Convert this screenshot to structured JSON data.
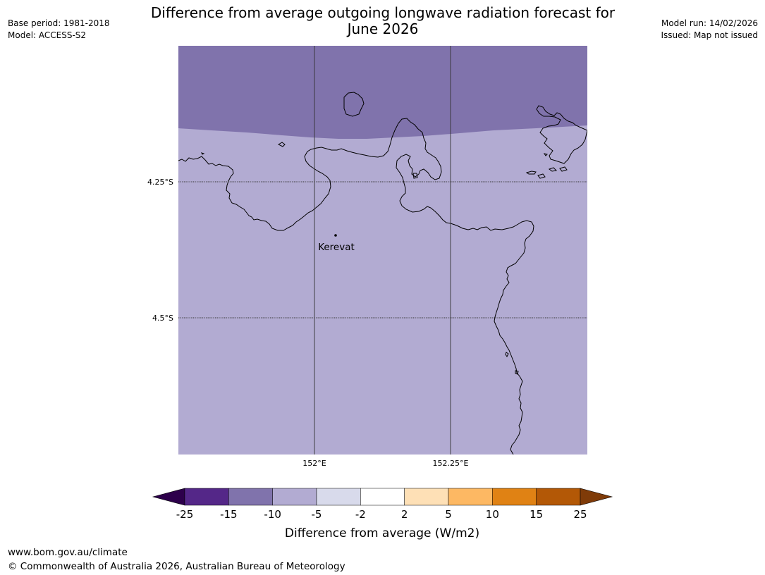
{
  "header": {
    "title_line1": "Difference from average outgoing longwave radiation forecast for",
    "title_line2": "June 2026",
    "base_period": "Base period: 1981-2018",
    "model": "Model: ACCESS-S2",
    "model_run": "Model run: 14/02/2026",
    "issued": "Issued: Map not issued"
  },
  "map": {
    "lat_labels": [
      "4.25°S",
      "4.5°S"
    ],
    "lon_labels": [
      "152°E",
      "152.25°E"
    ],
    "place": {
      "name": "Kerevat"
    },
    "category_colors": {
      "band_north": "#8073ac",
      "band_south": "#b2abd2",
      "coastline": "#000000",
      "grid": "#333333"
    }
  },
  "colorbar": {
    "label": "Difference from average (W/m2)",
    "ticks": [
      "-25",
      "-15",
      "-10",
      "-5",
      "-2",
      "2",
      "5",
      "10",
      "15",
      "25"
    ],
    "colors": [
      "#542788",
      "#8073ac",
      "#b2abd2",
      "#d8daeb",
      "#ffffff",
      "#fee0b6",
      "#fdb863",
      "#e08214",
      "#b35806"
    ],
    "extend_low_color": "#2d004b",
    "extend_high_color": "#7f3b08"
  },
  "footer": {
    "url": "www.bom.gov.au/climate",
    "copyright": "© Commonwealth of Australia 2026, Australian Bureau of Meteorology"
  }
}
